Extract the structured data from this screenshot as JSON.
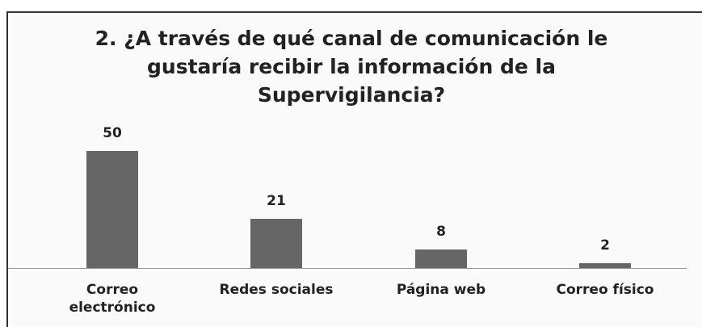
{
  "chart_data": {
    "type": "bar",
    "title": "2. ¿A través de qué canal de comunicación le gustaría recibir la información de la Supervigilancia?",
    "categories": [
      "Correo electrónico",
      "Redes sociales",
      "Página web",
      "Correo físico"
    ],
    "values": [
      50,
      21,
      8,
      2
    ],
    "color": "#666666"
  }
}
